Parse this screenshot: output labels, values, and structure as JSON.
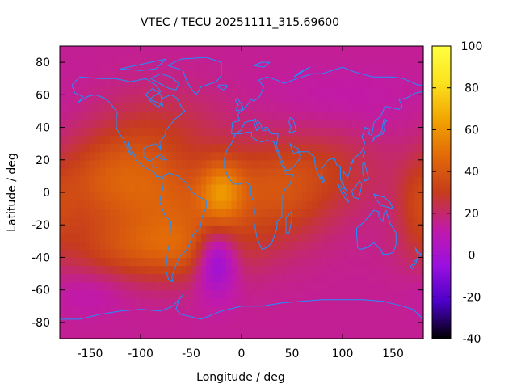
{
  "chart_data": {
    "type": "heatmap",
    "title": "VTEC / TECU 20251111_315.69600",
    "xlabel": "Longitude / deg",
    "ylabel": "Latitude / deg",
    "xlim": [
      -180,
      180
    ],
    "ylim": [
      -90,
      90
    ],
    "x_ticks": [
      "-150",
      "-100",
      "-50",
      "0",
      "50",
      "100",
      "150"
    ],
    "x_tick_values": [
      -150,
      -100,
      -50,
      0,
      50,
      100,
      150
    ],
    "y_ticks": [
      "80",
      "60",
      "40",
      "20",
      "0",
      "-20",
      "-40",
      "-60",
      "-80"
    ],
    "y_tick_values": [
      80,
      60,
      40,
      20,
      0,
      -20,
      -40,
      -60,
      -80
    ],
    "colorbar": {
      "range": [
        -40,
        100
      ],
      "ticks": [
        "100",
        "80",
        "60",
        "40",
        "20",
        "0",
        "-20",
        "-40"
      ],
      "tick_values": [
        100,
        80,
        60,
        40,
        20,
        0,
        -20,
        -40
      ],
      "colormap": "gnuplot-pm3d",
      "stops": [
        "#000000",
        "#4b00c8",
        "#9a10e0",
        "#c21aa8",
        "#c63c1c",
        "#e26a08",
        "#f2a500",
        "#fbe21e",
        "#ffff40"
      ]
    },
    "background_value": 15,
    "features": [
      {
        "lon": -25,
        "lat": -40,
        "amp": -33,
        "slon": 14,
        "slat": 14
      },
      {
        "lon": -20,
        "lat": 0,
        "amp": 28,
        "slon": 15,
        "slat": 14
      },
      {
        "lon": -75,
        "lat": -5,
        "amp": 22,
        "slon": 40,
        "slat": 20
      },
      {
        "lon": -150,
        "lat": 5,
        "amp": 15,
        "slon": 30,
        "slat": 20
      },
      {
        "lon": -110,
        "lat": 15,
        "amp": 12,
        "slon": 30,
        "slat": 18
      },
      {
        "lon": -80,
        "lat": 40,
        "amp": 10,
        "slon": 45,
        "slat": 18
      },
      {
        "lon": -50,
        "lat": -35,
        "amp": 18,
        "slon": 40,
        "slat": 14
      },
      {
        "lon": -120,
        "lat": -35,
        "amp": 15,
        "slon": 45,
        "slat": 14
      },
      {
        "lon": 30,
        "lat": 0,
        "amp": 22,
        "slon": 40,
        "slat": 22
      },
      {
        "lon": 90,
        "lat": 15,
        "amp": 10,
        "slon": 40,
        "slat": 18
      },
      {
        "lon": 175,
        "lat": -10,
        "amp": 12,
        "slon": 15,
        "slat": 18
      },
      {
        "lon": -150,
        "lat": -60,
        "amp": -5,
        "slon": 25,
        "slat": 10
      },
      {
        "lon": 100,
        "lat": 55,
        "amp": -3,
        "slon": 60,
        "slat": 15
      }
    ],
    "coastline_color": "#1f90ff",
    "grid": false
  }
}
